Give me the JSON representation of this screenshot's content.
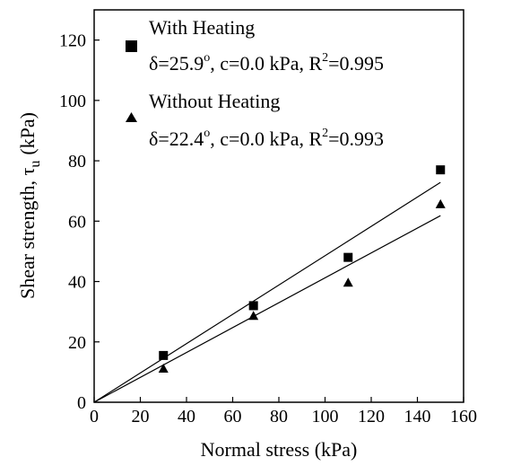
{
  "chart_data": {
    "type": "scatter",
    "xlabel": "Normal stress (kPa)",
    "ylabel": "Shear strength, τ",
    "ylabel_sub": "u",
    "ylabel_unit": "(kPa)",
    "xlim": [
      0,
      160
    ],
    "ylim": [
      0,
      130
    ],
    "xticks": [
      0,
      20,
      40,
      60,
      80,
      100,
      120,
      140,
      160
    ],
    "yticks": [
      0,
      20,
      40,
      60,
      80,
      100,
      120
    ],
    "grid": false,
    "legend_position": "top-left",
    "series": [
      {
        "name": "With Heating",
        "marker": "square",
        "x": [
          30,
          69,
          110,
          150
        ],
        "y": [
          15.5,
          32,
          48,
          77
        ],
        "fit": {
          "label": "δ=25.9°, c=0.0 kPa, R²=0.995",
          "delta_prefix": "δ=25.9",
          "delta_sup": "o",
          "rest_prefix": ", c=0.0 kPa, R",
          "r2_sup": "2",
          "r2_value": "=0.995",
          "slope_deg": 25.9,
          "intercept": 0.0,
          "r2": 0.995
        }
      },
      {
        "name": "Without Heating",
        "marker": "triangle",
        "x": [
          30,
          69,
          110,
          150
        ],
        "y": [
          11,
          28.5,
          39.5,
          65.5
        ],
        "fit": {
          "label": "δ=22.4°, c=0.0 kPa, R²=0.993",
          "delta_prefix": "δ=22.4",
          "delta_sup": "o",
          "rest_prefix": ", c=0.0 kPa, R",
          "r2_sup": "2",
          "r2_value": "=0.993",
          "slope_deg": 22.4,
          "intercept": 0.0,
          "r2": 0.993
        }
      }
    ]
  }
}
